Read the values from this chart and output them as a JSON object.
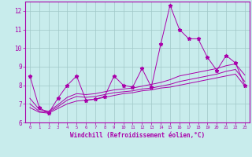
{
  "xlabel": "Windchill (Refroidissement éolien,°C)",
  "background_color": "#c8ecec",
  "grid_color": "#a0c8c8",
  "line_color": "#aa00aa",
  "x_values": [
    0,
    1,
    2,
    3,
    4,
    5,
    6,
    7,
    8,
    9,
    10,
    11,
    12,
    13,
    14,
    15,
    16,
    17,
    18,
    19,
    20,
    21,
    22,
    23
  ],
  "ylim": [
    6,
    12.5
  ],
  "xlim": [
    -0.5,
    23.5
  ],
  "yticks": [
    6,
    7,
    8,
    9,
    10,
    11,
    12
  ],
  "line1_y": [
    8.5,
    6.8,
    6.5,
    7.3,
    8.0,
    8.5,
    7.2,
    7.25,
    7.4,
    8.5,
    8.0,
    7.9,
    8.9,
    7.9,
    10.2,
    12.3,
    11.0,
    10.5,
    10.5,
    9.5,
    8.8,
    9.6,
    9.2,
    8.0
  ],
  "line2_y": [
    6.8,
    6.55,
    6.5,
    6.75,
    7.0,
    7.15,
    7.2,
    7.25,
    7.35,
    7.45,
    7.55,
    7.6,
    7.7,
    7.75,
    7.85,
    7.9,
    8.0,
    8.1,
    8.2,
    8.3,
    8.4,
    8.5,
    8.6,
    7.95
  ],
  "line3_y": [
    7.0,
    6.6,
    6.55,
    6.85,
    7.2,
    7.4,
    7.35,
    7.4,
    7.5,
    7.6,
    7.65,
    7.7,
    7.8,
    7.85,
    7.95,
    8.05,
    8.2,
    8.3,
    8.4,
    8.5,
    8.6,
    8.75,
    8.85,
    8.2
  ],
  "line4_y": [
    7.3,
    6.7,
    6.6,
    6.95,
    7.35,
    7.55,
    7.5,
    7.55,
    7.65,
    7.75,
    7.8,
    7.85,
    7.95,
    8.05,
    8.15,
    8.3,
    8.5,
    8.6,
    8.7,
    8.8,
    8.9,
    9.05,
    9.15,
    8.55
  ]
}
